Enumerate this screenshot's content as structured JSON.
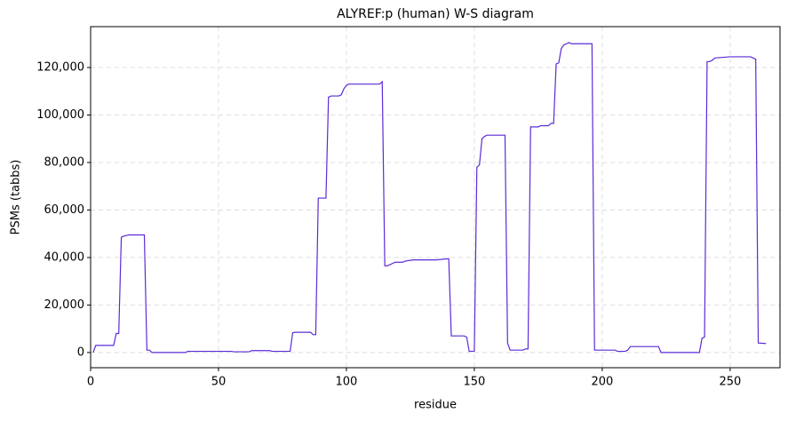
{
  "chart_data": {
    "type": "line",
    "title": "ALYREF:p (human) W-S diagram",
    "x_label": "residue",
    "y_label": "PSMs (tabbs)",
    "grid": true,
    "xlim": [
      0,
      269.5
    ],
    "ylim": [
      -6400,
      137200
    ],
    "xticks": [
      0,
      50,
      100,
      150,
      200,
      250
    ],
    "yticks": [
      0,
      {
        "value": 20000,
        "label": "20,000"
      },
      {
        "value": 40000,
        "label": "40,000"
      },
      {
        "value": 60000,
        "label": "60,000"
      },
      {
        "value": 80000,
        "label": "80,000"
      },
      {
        "value": 100000,
        "label": "100,000"
      },
      {
        "value": 120000,
        "label": "120,000"
      }
    ],
    "x": [
      1,
      2,
      3,
      9,
      10,
      11,
      12,
      13,
      14,
      15,
      21,
      22,
      23,
      24,
      37,
      38,
      55,
      56,
      62,
      63,
      70,
      71,
      78,
      79,
      80,
      86,
      87,
      88,
      89,
      92,
      93,
      94,
      97,
      98,
      99,
      100,
      101,
      113,
      114,
      115,
      116,
      117,
      118,
      119,
      122,
      123,
      126,
      127,
      135,
      140,
      141,
      146,
      147,
      148,
      150,
      151,
      152,
      153,
      154,
      155,
      162,
      163,
      164,
      169,
      170,
      171,
      172,
      175,
      176,
      179,
      180,
      181,
      182,
      183,
      184,
      185,
      186,
      187,
      188,
      196,
      197,
      205,
      206,
      209,
      210,
      211,
      222,
      223,
      238,
      239,
      240,
      241,
      242,
      243,
      244,
      250,
      258,
      259,
      260,
      261,
      264
    ],
    "series": [
      {
        "name": "PSMs",
        "color": "#5b2bd6",
        "values": [
          0,
          3000,
          3000,
          3000,
          8000,
          8000,
          48500,
          49000,
          49300,
          49500,
          49500,
          1000,
          1000,
          0,
          0,
          500,
          500,
          300,
          300,
          800,
          800,
          500,
          500,
          8300,
          8500,
          8500,
          7500,
          7500,
          65000,
          65000,
          107500,
          108000,
          108000,
          108500,
          111000,
          112500,
          113000,
          113000,
          114000,
          36500,
          36500,
          37000,
          37500,
          38000,
          38000,
          38500,
          39000,
          39000,
          39000,
          39500,
          7000,
          7000,
          6500,
          500,
          500,
          78000,
          79000,
          90000,
          91000,
          91500,
          91500,
          4000,
          1000,
          1000,
          1500,
          1500,
          95000,
          95000,
          95500,
          95500,
          96500,
          96500,
          121500,
          122000,
          128000,
          129500,
          130000,
          130500,
          130000,
          130000,
          1000,
          1000,
          500,
          500,
          1000,
          2500,
          2500,
          0,
          0,
          6000,
          6500,
          122500,
          122500,
          123000,
          124000,
          124500,
          124500,
          124000,
          123500,
          4000,
          3800
        ]
      }
    ]
  }
}
